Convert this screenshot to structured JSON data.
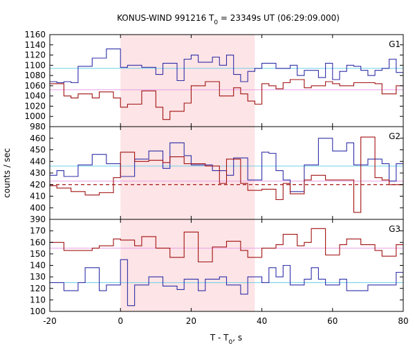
{
  "chart_data": {
    "type": "line",
    "title": "KONUS-WIND 991216 T",
    "title_sub": "0",
    "title_tail": " = 23349s UT (06:29:09.000)",
    "xlabel": "T - T",
    "xlabel_sub": "0",
    "xlabel_tail": ", s",
    "ylabel": "counts / sec",
    "xlim": [
      -20,
      80
    ],
    "x_ticks": [
      -20,
      0,
      20,
      40,
      60,
      80
    ],
    "x_tick_labels": [
      "-20",
      "0",
      "20",
      "40",
      "60",
      "80"
    ],
    "shaded_interval": [
      0,
      38.0
    ],
    "shade_color": "#fde4e6",
    "colors": {
      "blue": "#2e2ea8",
      "red": "#a01010",
      "cyan": "#6ed0e8",
      "pink": "#e8a0e8"
    },
    "bin_edges": [
      -20,
      -18,
      -16,
      -14,
      -12,
      -10,
      -8,
      -6,
      -4,
      -2,
      0,
      2,
      4,
      6,
      8,
      10,
      12,
      14,
      16,
      18,
      20,
      22,
      24,
      26,
      28,
      30,
      32,
      34,
      36,
      38,
      40,
      42,
      44,
      46,
      48,
      50,
      52,
      54,
      56,
      58,
      60,
      62,
      64,
      66,
      68,
      70,
      72,
      74,
      76,
      78,
      80
    ],
    "panels": [
      {
        "label": "G1",
        "ylim": [
          980,
          1160
        ],
        "y_ticks": [
          980,
          1000,
          1020,
          1040,
          1060,
          1080,
          1100,
          1120,
          1140,
          1160
        ],
        "y_tick_labels": [
          "980",
          "1000",
          "1020",
          "1040",
          "1060",
          "1080",
          "1100",
          "1120",
          "1140",
          "1160"
        ],
        "series": [
          {
            "color_key": "blue",
            "values": [
              1068,
              1066,
              1068,
              1066,
              1098,
              1098,
              1114,
              1114,
              1132,
              1132,
              1096,
              1100,
              1100,
              1096,
              1096,
              1082,
              1104,
              1104,
              1070,
              1112,
              1120,
              1106,
              1106,
              1116,
              1100,
              1120,
              1082,
              1068,
              1088,
              1094,
              1104,
              1104,
              1094,
              1094,
              1100,
              1080,
              1090,
              1090,
              1076,
              1104,
              1072,
              1088,
              1100,
              1098,
              1090,
              1080,
              1090,
              1094,
              1112,
              1086
            ]
          },
          {
            "color_key": "red",
            "values": [
              1064,
              1064,
              1040,
              1036,
              1044,
              1044,
              1036,
              1048,
              1048,
              1036,
              1018,
              1024,
              1024,
              1050,
              1050,
              1018,
              994,
              1010,
              1010,
              1026,
              1060,
              1060,
              1068,
              1068,
              1040,
              1040,
              1056,
              1044,
              1030,
              1024,
              1064,
              1060,
              1054,
              1066,
              1072,
              1072,
              1056,
              1060,
              1060,
              1068,
              1064,
              1060,
              1060,
              1066,
              1066,
              1066,
              1064,
              1044,
              1044,
              1060
            ]
          }
        ],
        "ref_lines": [
          {
            "color_key": "cyan",
            "value": 1094,
            "dashed": false
          },
          {
            "color_key": "pink",
            "value": 1052,
            "dashed": false
          }
        ]
      },
      {
        "label": "G2",
        "ylim": [
          390,
          470
        ],
        "y_ticks": [
          390,
          400,
          410,
          420,
          430,
          440,
          450,
          460
        ],
        "y_tick_labels": [
          "390",
          "400",
          "410",
          "420",
          "430",
          "440",
          "450",
          "460"
        ],
        "series": [
          {
            "color_key": "blue",
            "values": [
              428,
              432,
              427,
              427,
              437,
              437,
              446,
              446,
              438,
              438,
              427,
              427,
              442,
              442,
              449,
              449,
              434,
              456,
              456,
              445,
              437,
              437,
              437,
              432,
              432,
              428,
              443,
              443,
              424,
              424,
              448,
              447,
              432,
              424,
              414,
              414,
              437,
              437,
              460,
              460,
              449,
              449,
              456,
              437,
              437,
              442,
              442,
              438,
              423,
              438
            ]
          },
          {
            "color_key": "red",
            "values": [
              419,
              417,
              417,
              414,
              414,
              411,
              411,
              413,
              413,
              426,
              448,
              448,
              440,
              440,
              441,
              441,
              439,
              444,
              444,
              438,
              438,
              438,
              436,
              436,
              421,
              442,
              442,
              421,
              415,
              415,
              416,
              416,
              407,
              421,
              412,
              412,
              424,
              428,
              428,
              424,
              424,
              424,
              424,
              396,
              461,
              461,
              426,
              424,
              420,
              420
            ]
          }
        ],
        "ref_lines": [
          {
            "color_key": "cyan",
            "value": 436,
            "dashed": false
          },
          {
            "color_key": "pink",
            "value": 423,
            "dashed": false
          },
          {
            "color_key": "red",
            "value": 420,
            "dashed": true
          }
        ]
      },
      {
        "label": "G3",
        "ylim": [
          100,
          180
        ],
        "y_ticks": [
          100,
          110,
          120,
          130,
          140,
          150,
          160,
          170
        ],
        "y_tick_labels": [
          "100",
          "110",
          "120",
          "130",
          "140",
          "150",
          "160",
          "170"
        ],
        "series": [
          {
            "color_key": "blue",
            "values": [
              125,
              125,
              118,
              118,
              125,
              138,
              138,
              118,
              123,
              123,
              145,
              105,
              123,
              123,
              130,
              130,
              122,
              122,
              119,
              128,
              128,
              118,
              128,
              128,
              130,
              123,
              123,
              115,
              130,
              130,
              125,
              138,
              130,
              140,
              123,
              123,
              128,
              138,
              128,
              123,
              123,
              128,
              118,
              118,
              118,
              123,
              123,
              123,
              123,
              134
            ]
          },
          {
            "color_key": "red",
            "values": [
              160,
              160,
              153,
              153,
              153,
              153,
              155,
              157,
              157,
              163,
              162,
              162,
              157,
              165,
              165,
              155,
              155,
              147,
              147,
              169,
              169,
              143,
              143,
              156,
              156,
              161,
              161,
              153,
              147,
              147,
              155,
              155,
              158,
              167,
              167,
              157,
              160,
              172,
              172,
              149,
              149,
              158,
              163,
              163,
              158,
              158,
              153,
              148,
              148,
              158
            ]
          }
        ],
        "ref_lines": [
          {
            "color_key": "cyan",
            "value": 125,
            "dashed": false
          },
          {
            "color_key": "pink",
            "value": 155,
            "dashed": false
          }
        ]
      }
    ]
  }
}
